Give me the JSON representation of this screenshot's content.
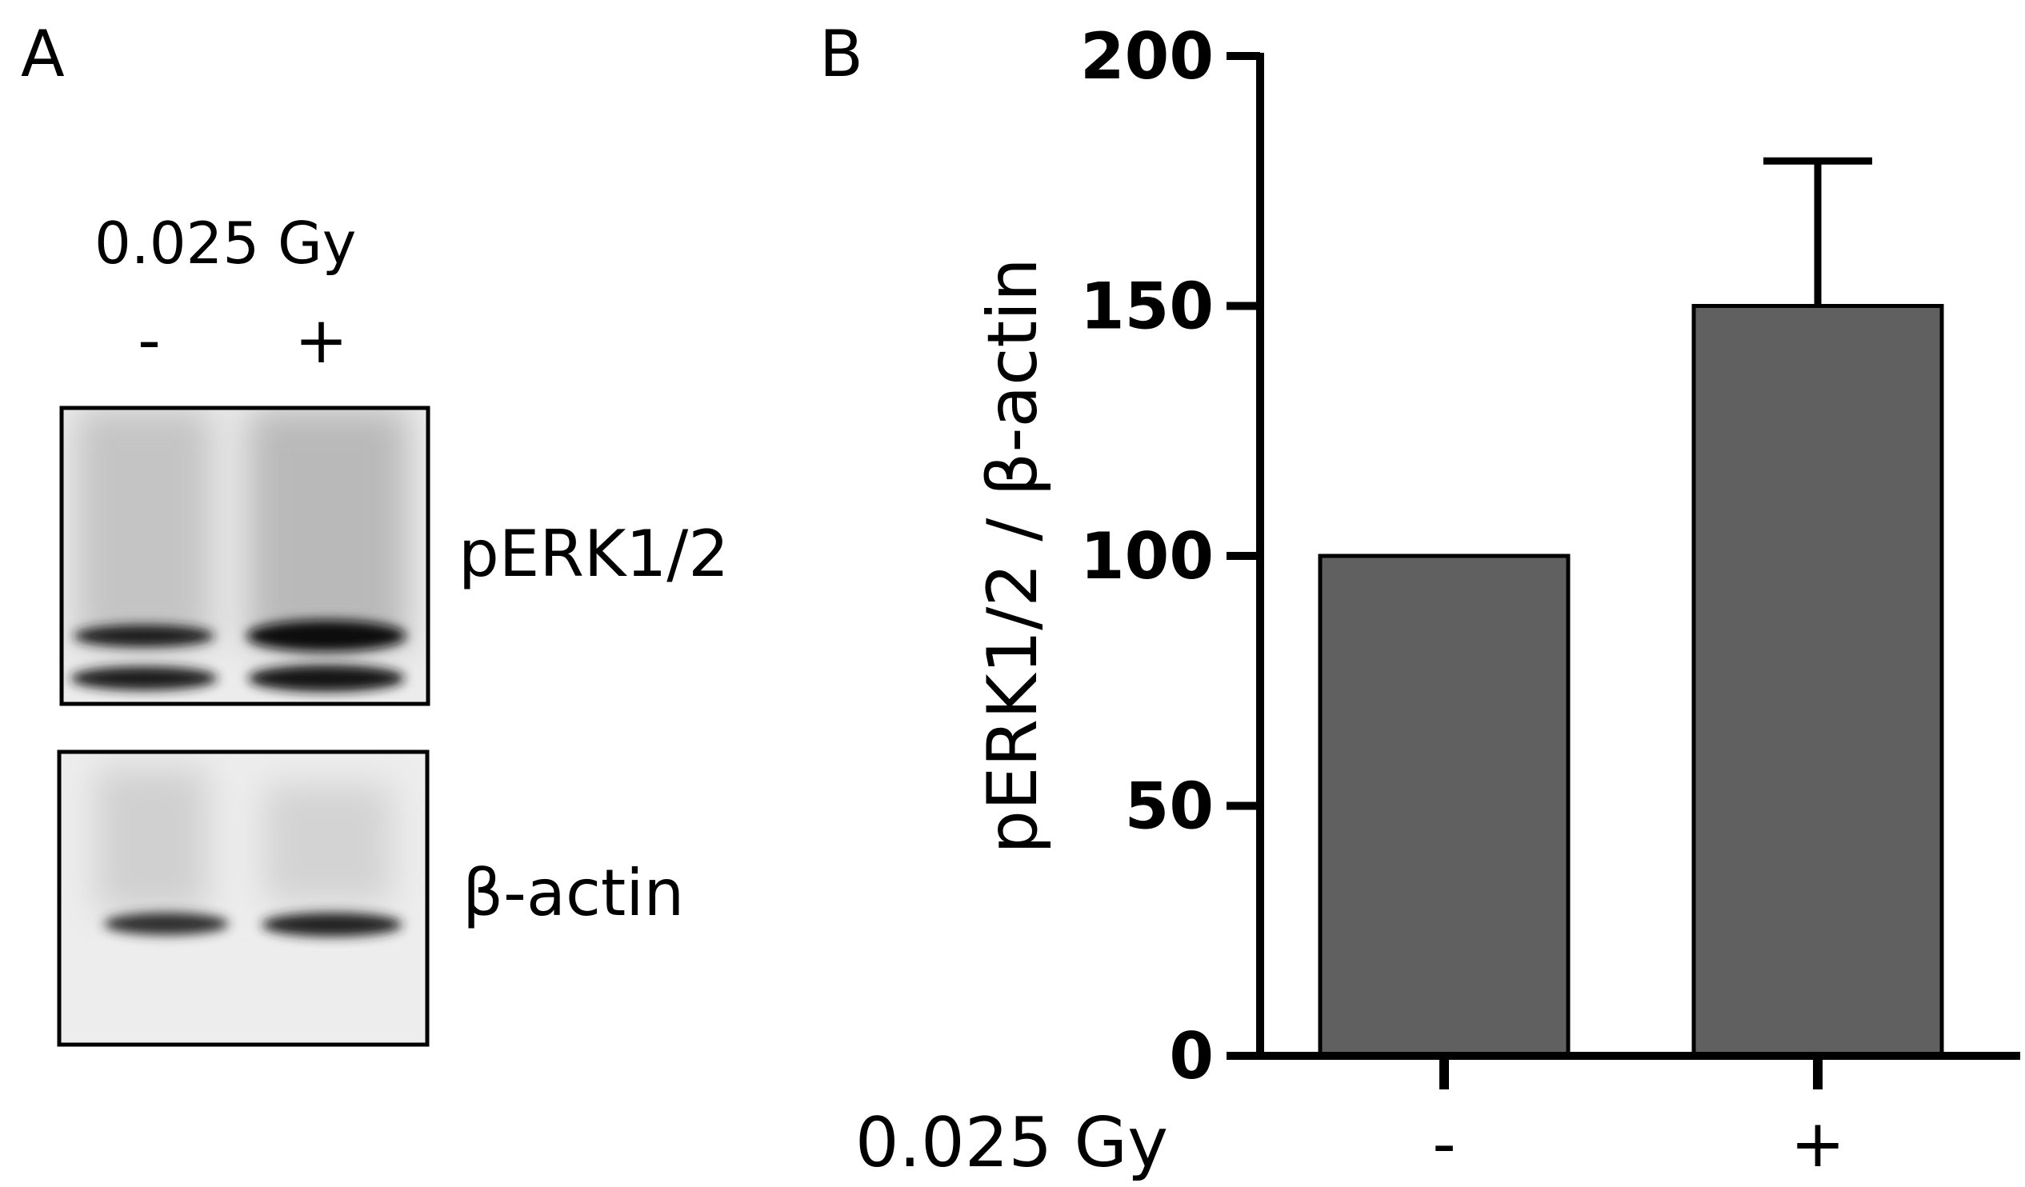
{
  "panels": {
    "a_letter": "A",
    "b_letter": "B"
  },
  "blot": {
    "dose_label": "0.025 Gy",
    "lanes": [
      "-",
      "+"
    ],
    "labels": [
      "pERK1/2",
      "β-actin"
    ]
  },
  "chart_data": {
    "type": "bar",
    "categories": [
      "-",
      "+"
    ],
    "values": [
      100,
      150
    ],
    "error_bars": [
      null,
      29
    ],
    "xlabel": "0.025 Gy",
    "ylabel": "pERK1/2 / β-actin",
    "ylim": [
      0,
      200
    ],
    "yticks": [
      0,
      50,
      100,
      150,
      200
    ],
    "bar_color": "#606060",
    "grid": false
  }
}
